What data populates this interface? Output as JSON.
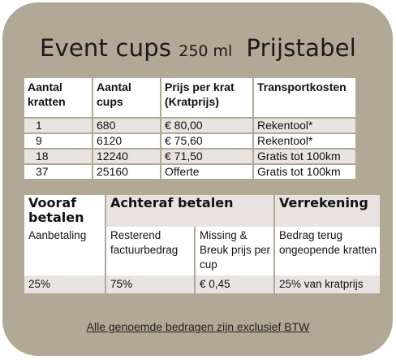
{
  "title": {
    "main": "Event cups",
    "volume": "250 ml",
    "suffix": "Prijstabel"
  },
  "price_table": {
    "headers": [
      "Aantal kratten",
      "Aantal cups",
      "Prijs per krat (Kratprijs)",
      "Transportkosten"
    ],
    "rows": [
      [
        "1",
        "680",
        "€ 80,00",
        "Rekentool*"
      ],
      [
        "9",
        "6120",
        "€ 75,60",
        "Rekentool*"
      ],
      [
        "18",
        "12240",
        "€ 71,50",
        "Gratis tot 100km"
      ],
      [
        "37",
        "25160",
        "Offerte",
        "Gratis tot 100km"
      ]
    ]
  },
  "payment_table": {
    "headers": {
      "vooraf": "Vooraf betalen",
      "achteraf": "Achteraf betalen",
      "verrekening": "Verrekening"
    },
    "descriptions": [
      "Aanbetaling",
      "Resterend factuurbedrag",
      "Missing & Breuk prijs per cup",
      "Bedrag terug ongeopende kratten"
    ],
    "values": [
      "25%",
      "75%",
      "€ 0,45",
      "25% van kratprijs"
    ]
  },
  "footer": "Alle genoemde bedragen zijn exclusief BTW"
}
